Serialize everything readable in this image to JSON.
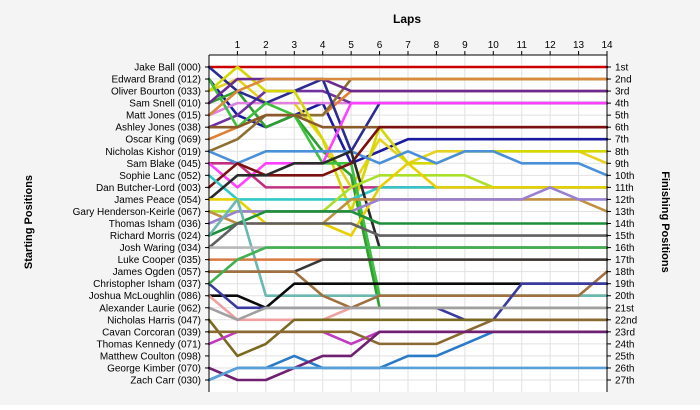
{
  "chart_data": {
    "type": "line",
    "title": "Laps",
    "ylabel_left": "Starting Positions",
    "ylabel_right": "Finishing Positions",
    "x": [
      0,
      1,
      2,
      3,
      4,
      5,
      6,
      7,
      8,
      9,
      10,
      11,
      12,
      13,
      14
    ],
    "x_tick_labels": [
      "1",
      "2",
      "3",
      "4",
      "5",
      "6",
      "7",
      "8",
      "9",
      "10",
      "11",
      "12",
      "13",
      "14"
    ],
    "xlim": [
      0,
      14
    ],
    "ylim": [
      1,
      27
    ],
    "y_inverted": true,
    "grid": true,
    "finishing_labels": [
      "1st",
      "2nd",
      "3rd",
      "4th",
      "5th",
      "6th",
      "7th",
      "8th",
      "9th",
      "10th",
      "11th",
      "12th",
      "13th",
      "14th",
      "15th",
      "16th",
      "17th",
      "18th",
      "19th",
      "20th",
      "21st",
      "22nd",
      "23rd",
      "24th",
      "25th",
      "26th",
      "27th"
    ],
    "series": [
      {
        "name": "Jake Ball (000)",
        "color": "#cc0000",
        "values": [
          1,
          1,
          1,
          1,
          1,
          1,
          1,
          1,
          1,
          1,
          1,
          1,
          1,
          1,
          1
        ]
      },
      {
        "name": "Edward Brand (012)",
        "color": "#1a1aa0",
        "values": [
          2,
          5,
          6,
          5,
          4,
          9,
          8,
          7,
          7,
          7,
          7,
          7,
          7,
          7,
          7
        ]
      },
      {
        "name": "Oliver Bourton (033)",
        "color": "#e6d21e",
        "values": [
          3,
          2,
          4,
          4,
          7,
          11,
          7,
          9,
          8,
          8,
          8,
          8,
          8,
          8,
          9
        ]
      },
      {
        "name": "Sam Snell (010)",
        "color": "#2e9e2e",
        "values": [
          4,
          3,
          6,
          5,
          8,
          10,
          21,
          21,
          21,
          21,
          21,
          21,
          21,
          21,
          21
        ]
      },
      {
        "name": "Matt Jones (015)",
        "color": "#e080e0",
        "values": [
          5,
          4,
          4,
          4,
          4,
          4,
          4,
          4,
          4,
          4,
          4,
          4,
          4,
          4,
          4
        ]
      },
      {
        "name": "Ashley Jones (038)",
        "color": "#7030a0",
        "values": [
          6,
          5,
          3,
          3,
          3,
          4,
          4,
          4,
          4,
          4,
          4,
          4,
          4,
          4,
          4
        ]
      },
      {
        "name": "Oscar King (069)",
        "color": "#e08030",
        "values": [
          7,
          6,
          5,
          5,
          5,
          3,
          3,
          3,
          3,
          3,
          3,
          3,
          3,
          3,
          3
        ]
      },
      {
        "name": "Nicholas Kishor (019)",
        "color": "#8b7032",
        "values": [
          8,
          7,
          5,
          5,
          5,
          2,
          2,
          2,
          2,
          2,
          2,
          2,
          2,
          2,
          2
        ]
      },
      {
        "name": "Sam Blake (045)",
        "color": "#c03080",
        "values": [
          9,
          9,
          11,
          11,
          11,
          11,
          11,
          11,
          11,
          11,
          11,
          11,
          11,
          11,
          11
        ]
      }
    ],
    "categories_left": [
      "Jake Ball (000)",
      "Edward Brand (012)",
      "Oliver Bourton (033)",
      "Sam Snell (010)",
      "Matt Jones (015)",
      "Ashley Jones (038)",
      "Oscar King (069)",
      "Nicholas Kishor (019)",
      "Sam Blake (045)",
      "Sophie Lanc (052)",
      "Dan Butcher-Lord (003)",
      "James Peace (054)",
      "Gary Henderson-Keirle (067)",
      "Thomas Isham (036)",
      "Richard Morris (024)",
      "Josh Waring (034)",
      "Luke Cooper (035)",
      "James Ogden (057)",
      "Christopher Isham (037)",
      "Joshua McLoughlin (086)",
      "Alexander Laurie (062)",
      "Nicholas Harris (047)",
      "Cavan Corcoran (039)",
      "Thomas Kennedy (071)",
      "Matthew Coulton (098)",
      "George Kimber (070)",
      "Zach Carr (030)"
    ]
  },
  "extra_series": [
    {
      "color": "#2c2c90",
      "values": [
        1,
        3,
        4,
        3,
        2,
        8,
        4,
        4,
        4,
        4,
        4,
        4,
        4,
        4,
        4
      ],
      "label_index": 1
    },
    {
      "color": "#d4d800",
      "values": [
        3,
        1,
        3,
        3,
        7,
        13,
        6,
        9,
        9,
        8,
        8,
        8,
        8,
        8,
        8
      ],
      "label_index": 2
    },
    {
      "color": "#3fbf3f",
      "values": [
        2,
        6,
        4,
        5,
        9,
        9,
        20,
        20,
        20,
        20,
        20,
        20,
        20,
        20,
        20
      ],
      "label_index": 3
    },
    {
      "color": "#ff40ff",
      "values": [
        9,
        11,
        9,
        9,
        9,
        4,
        4,
        4,
        4,
        4,
        4,
        4,
        4,
        4,
        4
      ],
      "label_index": 4
    },
    {
      "color": "#6a2a90",
      "values": [
        4,
        2,
        2,
        2,
        2,
        3,
        3,
        3,
        3,
        3,
        3,
        3,
        3,
        3,
        3
      ],
      "label_index": 5
    },
    {
      "color": "#d98a3a",
      "values": [
        5,
        3,
        2,
        2,
        2,
        2,
        2,
        2,
        2,
        2,
        2,
        2,
        2,
        2,
        2
      ],
      "label_index": 6
    },
    {
      "color": "#8b5a2b",
      "values": [
        6,
        6,
        5,
        5,
        6,
        6,
        6,
        6,
        6,
        6,
        6,
        6,
        6,
        6,
        6
      ],
      "label_index": 7
    },
    {
      "color": "#4a90d9",
      "values": [
        8,
        9,
        8,
        8,
        8,
        8,
        9,
        8,
        9,
        8,
        8,
        9,
        9,
        9,
        10
      ],
      "label_index": 8
    },
    {
      "color": "#7a1010",
      "values": [
        11,
        9,
        10,
        10,
        10,
        9,
        6,
        6,
        6,
        6,
        6,
        6,
        6,
        6,
        6
      ],
      "label_index": 9
    },
    {
      "color": "#30c8c8",
      "values": [
        10,
        12,
        12,
        12,
        12,
        12,
        11,
        11,
        11,
        11,
        11,
        11,
        11,
        11,
        11
      ],
      "label_index": 10
    },
    {
      "color": "#2a2a2a",
      "values": [
        12,
        10,
        10,
        9,
        9,
        8,
        16,
        16,
        16,
        16,
        16,
        16,
        16,
        16,
        16
      ],
      "label_index": 11
    },
    {
      "color": "#a8e02a",
      "values": [
        13,
        13,
        13,
        13,
        13,
        11,
        10,
        10,
        10,
        10,
        11,
        11,
        11,
        11,
        11
      ],
      "label_index": 12
    },
    {
      "color": "#e8d000",
      "values": [
        12,
        12,
        14,
        14,
        14,
        15,
        11,
        9,
        11,
        11,
        11,
        11,
        11,
        11,
        11
      ],
      "label_index": 13
    },
    {
      "color": "#c09040",
      "values": [
        13,
        14,
        14,
        14,
        14,
        12,
        12,
        12,
        12,
        12,
        12,
        12,
        12,
        12,
        13
      ],
      "label_index": 14
    },
    {
      "color": "#9a80d0",
      "values": [
        14,
        13,
        13,
        13,
        13,
        13,
        12,
        12,
        12,
        12,
        12,
        12,
        11,
        12,
        12
      ],
      "label_index": 15
    },
    {
      "color": "#1f8f3a",
      "values": [
        15,
        14,
        13,
        13,
        13,
        13,
        14,
        14,
        14,
        14,
        14,
        14,
        14,
        14,
        14
      ],
      "label_index": 16
    },
    {
      "color": "#606060",
      "values": [
        16,
        14,
        14,
        14,
        14,
        14,
        15,
        15,
        15,
        15,
        15,
        15,
        15,
        15,
        15
      ],
      "label_index": 17
    },
    {
      "color": "#6ab8b0",
      "values": [
        15,
        12,
        20,
        20,
        20,
        20,
        20,
        20,
        20,
        20,
        20,
        20,
        20,
        20,
        20
      ],
      "label_index": 18
    },
    {
      "color": "#b8b8b8",
      "values": [
        16,
        16,
        16,
        16,
        16,
        16,
        16,
        16,
        16,
        16,
        16,
        16,
        16,
        16,
        16
      ],
      "label_index": 19
    },
    {
      "color": "#d87a40",
      "values": [
        17,
        17,
        17,
        17,
        17,
        17,
        17,
        17,
        17,
        17,
        17,
        17,
        17,
        17,
        17
      ],
      "label_index": 20
    },
    {
      "color": "#383838",
      "values": [
        18,
        18,
        18,
        18,
        17,
        17,
        17,
        17,
        17,
        17,
        17,
        17,
        17,
        17,
        17
      ],
      "label_index": 21
    },
    {
      "color": "#a07040",
      "values": [
        18,
        18,
        18,
        18,
        20,
        21,
        20,
        20,
        20,
        20,
        20,
        20,
        20,
        20,
        18
      ],
      "label_index": 22
    },
    {
      "color": "#0a0a0a",
      "values": [
        20,
        20,
        21,
        19,
        19,
        19,
        19,
        19,
        19,
        19,
        19,
        19,
        19,
        19,
        19
      ],
      "label_index": 23
    },
    {
      "color": "#3a3aa0",
      "values": [
        19,
        21,
        21,
        21,
        21,
        21,
        21,
        21,
        21,
        22,
        22,
        19,
        19,
        19,
        19
      ],
      "label_index": 24
    },
    {
      "color": "#40b050",
      "values": [
        19,
        17,
        16,
        16,
        16,
        16,
        16,
        16,
        16,
        16,
        16,
        16,
        16,
        16,
        16
      ],
      "label_index": 25
    },
    {
      "color": "#f0a0a0",
      "values": [
        20,
        22,
        22,
        22,
        22,
        21,
        21,
        21,
        21,
        21,
        21,
        21,
        21,
        21,
        21
      ],
      "label_index": 26
    },
    {
      "color": "#a0a0a0",
      "values": [
        21,
        22,
        21,
        21,
        21,
        21,
        21,
        21,
        21,
        21,
        21,
        21,
        21,
        21,
        21
      ],
      "label_index": 27
    },
    {
      "color": "#7a6a20",
      "values": [
        22,
        25,
        24,
        22,
        22,
        22,
        22,
        22,
        22,
        22,
        22,
        22,
        22,
        22,
        22
      ],
      "label_index": 28
    },
    {
      "color": "#c03ac0",
      "values": [
        24,
        23,
        23,
        23,
        23,
        24,
        23,
        23,
        23,
        23,
        23,
        23,
        23,
        23,
        23
      ],
      "label_index": 29
    },
    {
      "color": "#8a6a30",
      "values": [
        23,
        23,
        23,
        23,
        23,
        23,
        24,
        24,
        24,
        23,
        22,
        22,
        22,
        22,
        22
      ],
      "label_index": 30
    },
    {
      "color": "#2a7ac8",
      "values": [
        27,
        26,
        26,
        25,
        26,
        26,
        26,
        25,
        25,
        24,
        23,
        23,
        23,
        23,
        23
      ],
      "label_index": 31
    },
    {
      "color": "#702070",
      "values": [
        26,
        27,
        27,
        26,
        25,
        25,
        23,
        23,
        23,
        23,
        23,
        23,
        23,
        23,
        23
      ],
      "label_index": 32
    },
    {
      "color": "#5aa0d8",
      "values": [
        27,
        26,
        26,
        26,
        26,
        26,
        26,
        26,
        26,
        26,
        26,
        26,
        26,
        26,
        26
      ],
      "label_index": 33
    }
  ]
}
